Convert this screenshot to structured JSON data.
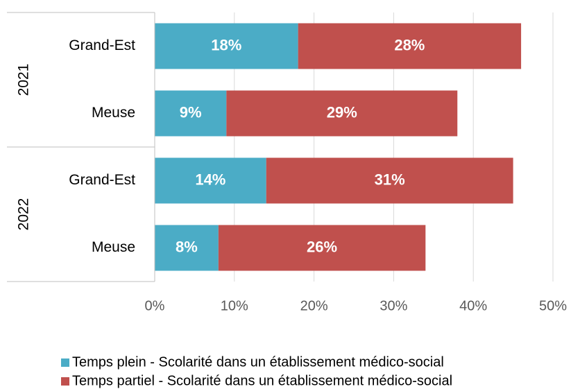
{
  "chart_data": {
    "type": "stacked-barh",
    "groups": [
      {
        "name": "2021",
        "categories": [
          "Grand-Est",
          "Meuse"
        ]
      },
      {
        "name": "2022",
        "categories": [
          "Grand-Est",
          "Meuse"
        ]
      }
    ],
    "series": [
      {
        "name": "Temps plein - Scolarité dans un établissement médico-social",
        "color": "#4bacc6",
        "values": [
          18,
          9,
          14,
          8
        ],
        "value_labels": [
          "18%",
          "9%",
          "14%",
          "8%"
        ]
      },
      {
        "name": "Temps partiel  - Scolarité dans un établissement médico-social",
        "color": "#c0504d",
        "values": [
          28,
          29,
          31,
          26
        ],
        "value_labels": [
          "28%",
          "29%",
          "31%",
          "26%"
        ]
      }
    ],
    "xlim": [
      0,
      50
    ],
    "xticks": [
      {
        "value": 0,
        "label": "0%"
      },
      {
        "value": 10,
        "label": "10%"
      },
      {
        "value": 20,
        "label": "20%"
      },
      {
        "value": 30,
        "label": "30%"
      },
      {
        "value": 40,
        "label": "40%"
      },
      {
        "value": 50,
        "label": "50%"
      }
    ],
    "grid": true,
    "legend": "bottom"
  }
}
